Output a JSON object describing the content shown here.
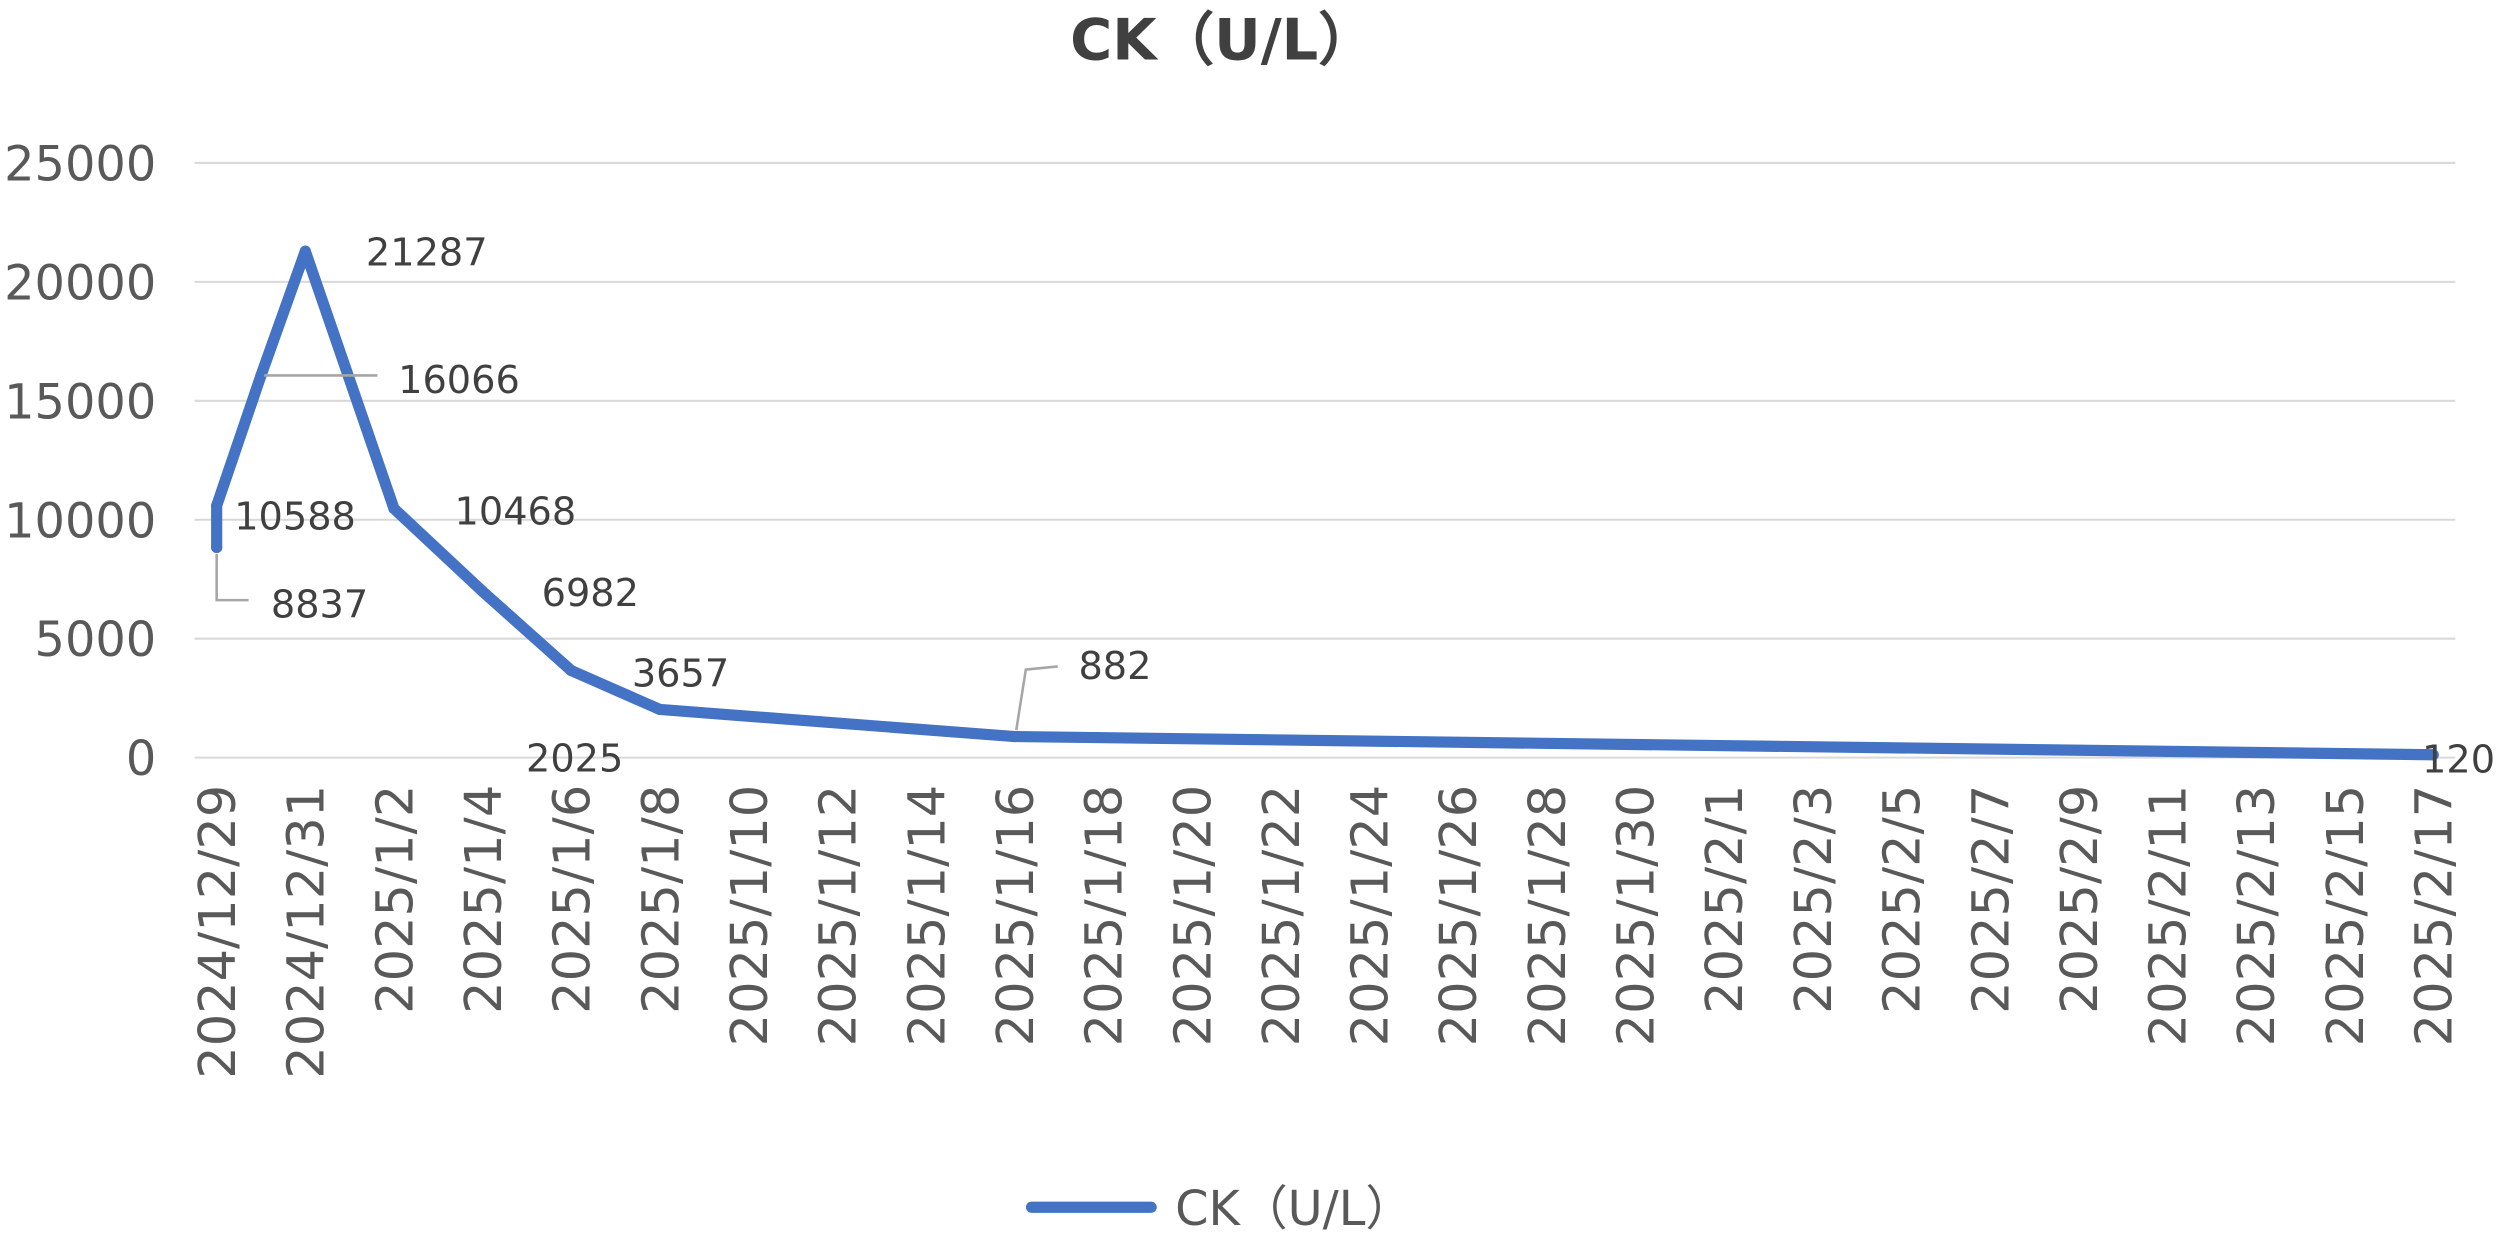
{
  "chart_data": {
    "type": "line",
    "title": "CK（U/L）",
    "x": [
      "2024/12/29",
      "2024/12/29",
      "2024/12/30",
      "2024/12/31",
      "2025/1/2",
      "2025/1/4",
      "2025/1/6",
      "2025/1/8",
      "2025/1/16",
      "2025/2/17"
    ],
    "series": [
      {
        "name": "CK（U/L）",
        "color": "#4472C4",
        "values": [
          8837,
          10588,
          16066,
          21287,
          10468,
          6982,
          3657,
          2025,
          882,
          120
        ]
      }
    ],
    "xlim": [
      "2024/12/29",
      "2025/2/17"
    ],
    "x_tick_labels": [
      "2024/12/29",
      "2024/12/31",
      "2025/1/2",
      "2025/1/4",
      "2025/1/6",
      "2025/1/8",
      "2025/1/10",
      "2025/1/12",
      "2025/1/14",
      "2025/1/16",
      "2025/1/18",
      "2025/1/20",
      "2025/1/22",
      "2025/1/24",
      "2025/1/26",
      "2025/1/28",
      "2025/1/30",
      "2025/2/1",
      "2025/2/3",
      "2025/2/5",
      "2025/2/7",
      "2025/2/9",
      "2025/2/11",
      "2025/2/13",
      "2025/2/15",
      "2025/2/17"
    ],
    "ylim": [
      0,
      25000
    ],
    "y_ticks": [
      0,
      5000,
      10000,
      15000,
      20000,
      25000
    ],
    "data_labels": true,
    "grid": true,
    "legend": "bottom"
  }
}
